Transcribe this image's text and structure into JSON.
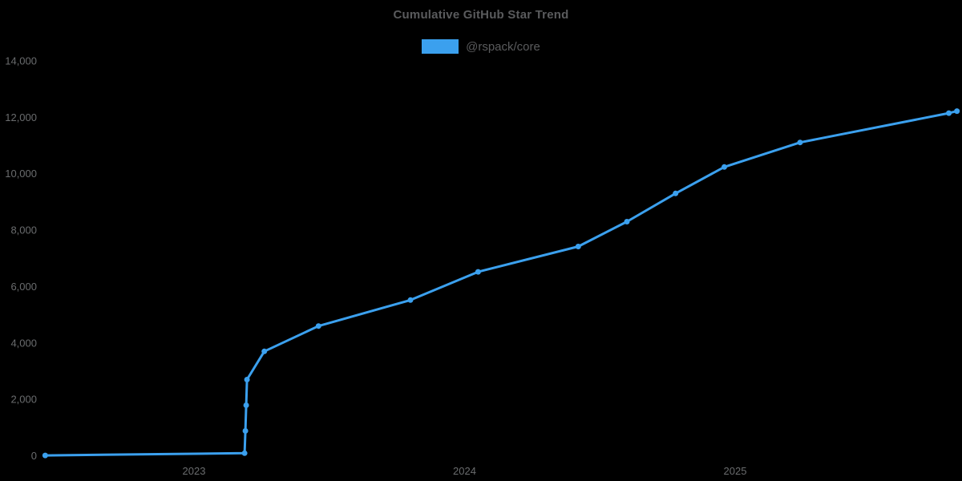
{
  "header": {
    "title": "Cumulative GitHub Star Trend"
  },
  "legend": {
    "label": "@rspack/core",
    "swatch_color": "#3ba0ee"
  },
  "colors": {
    "background": "#000000",
    "line": "#3ba0ee",
    "title_text": "#5a5b5d",
    "tick_text": "#6a6c6e"
  },
  "chart_data": {
    "type": "line",
    "title": "Cumulative GitHub Star Trend",
    "xlabel": "",
    "ylabel": "",
    "grid": false,
    "legend_position": "top-center",
    "ylim": [
      0,
      14000
    ],
    "xlim_years": [
      2022.4,
      2025.87
    ],
    "y_ticks": [
      {
        "label": "0",
        "value": 0
      },
      {
        "label": "2,000",
        "value": 2000
      },
      {
        "label": "4,000",
        "value": 4000
      },
      {
        "label": "6,000",
        "value": 6000
      },
      {
        "label": "8,000",
        "value": 8000
      },
      {
        "label": "10,000",
        "value": 10000
      },
      {
        "label": "12,000",
        "value": 12000
      },
      {
        "label": "14,000",
        "value": 14000
      }
    ],
    "x_ticks": [
      {
        "label": "2023",
        "year": 2023
      },
      {
        "label": "2024",
        "year": 2024
      },
      {
        "label": "2025",
        "year": 2025
      }
    ],
    "series": [
      {
        "name": "@rspack/core",
        "color": "#3ba0ee",
        "points": [
          {
            "t": 2022.45,
            "stars": 10
          },
          {
            "t": 2023.187,
            "stars": 90
          },
          {
            "t": 2023.19,
            "stars": 880
          },
          {
            "t": 2023.193,
            "stars": 1790
          },
          {
            "t": 2023.196,
            "stars": 2700
          },
          {
            "t": 2023.26,
            "stars": 3700
          },
          {
            "t": 2023.46,
            "stars": 4600
          },
          {
            "t": 2023.8,
            "stars": 5520
          },
          {
            "t": 2024.05,
            "stars": 6520
          },
          {
            "t": 2024.42,
            "stars": 7420
          },
          {
            "t": 2024.6,
            "stars": 8300
          },
          {
            "t": 2024.78,
            "stars": 9300
          },
          {
            "t": 2024.96,
            "stars": 10240
          },
          {
            "t": 2025.24,
            "stars": 11110
          },
          {
            "t": 2025.79,
            "stars": 12150
          },
          {
            "t": 2025.82,
            "stars": 12220
          }
        ]
      }
    ]
  }
}
